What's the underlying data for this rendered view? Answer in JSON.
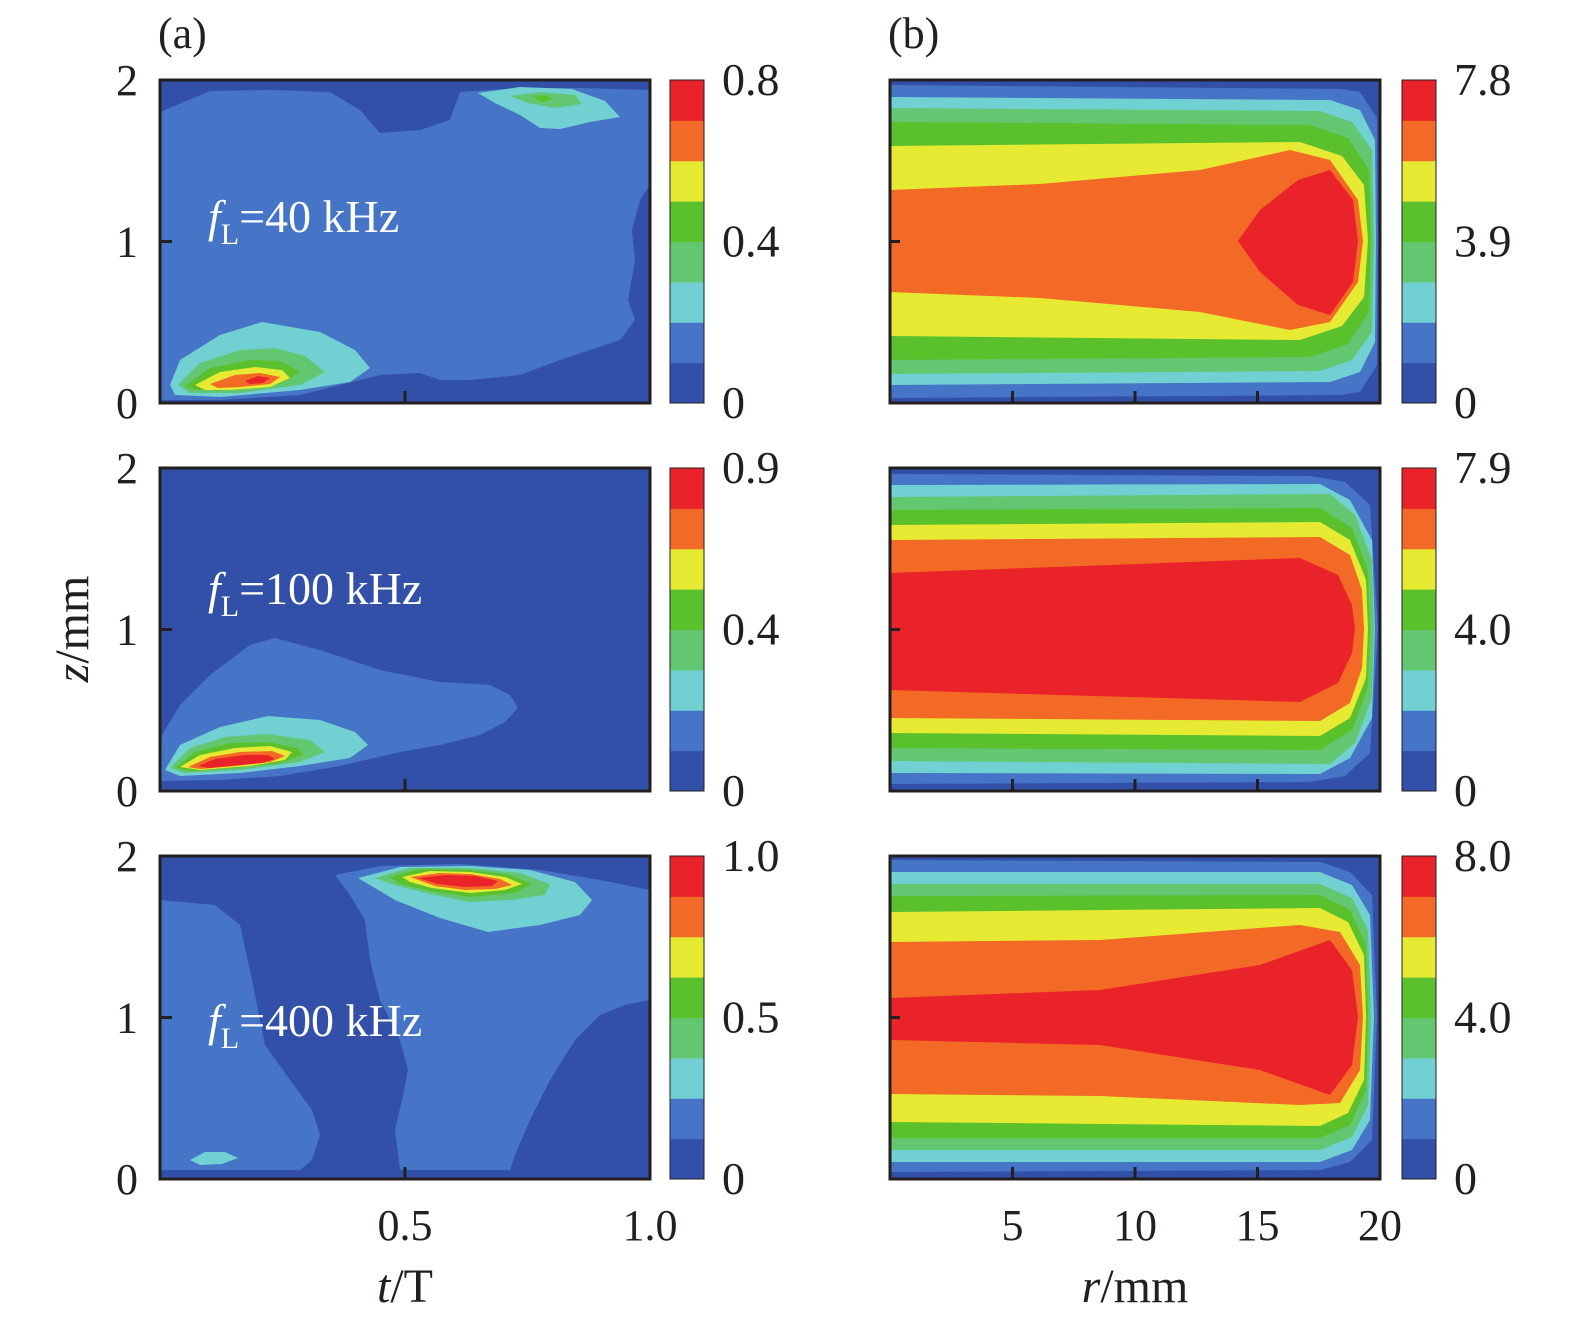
{
  "palette": [
    "#3350a8",
    "#4674c6",
    "#70d0d2",
    "#63c772",
    "#5ac12d",
    "#e6ea32",
    "#f26a25",
    "#ea2229"
  ],
  "panel_labels": [
    "(a)",
    "(b)"
  ],
  "x_titles": [
    {
      "italic": "t",
      "rest": "/T"
    },
    {
      "italic": "r",
      "rest": "/mm"
    }
  ],
  "y_title": {
    "italic": "z",
    "rest": "/mm"
  },
  "chart_data": [
    {
      "type": "heatmap",
      "panel": "(a)",
      "row": 1,
      "annotation": {
        "f": "f",
        "sub": "L",
        "text": "=40 kHz"
      },
      "x_ticks": [
        "0.5",
        "1.0"
      ],
      "y_ticks": [
        "0",
        "1",
        "2"
      ],
      "xlim": [
        0,
        1
      ],
      "ylim": [
        0,
        2
      ],
      "colorbar": {
        "levels": 8,
        "labels": [
          "0",
          "0.4",
          "0.8"
        ],
        "range": [
          0,
          0.8
        ]
      },
      "features": "background low level; hot spot (peak 0.8) near t/T≈0.2, z≈0.13 mm; weak secondary maximum near t/T≈0.78, z≈1.87 mm"
    },
    {
      "type": "heatmap",
      "panel": "(a)",
      "row": 2,
      "annotation": {
        "f": "f",
        "sub": "L",
        "text": "=100 kHz"
      },
      "x_ticks": [
        "0.5",
        "1.0"
      ],
      "y_ticks": [
        "0",
        "1",
        "2"
      ],
      "xlim": [
        0,
        1
      ],
      "ylim": [
        0,
        2
      ],
      "colorbar": {
        "levels": 8,
        "labels": [
          "0",
          "0.4",
          "0.9"
        ],
        "range": [
          0,
          0.9
        ]
      },
      "features": "hot spot (peak 0.9) near t/T≈0.16, z≈0.18 mm; remainder at lowest level"
    },
    {
      "type": "heatmap",
      "panel": "(a)",
      "row": 3,
      "annotation": {
        "f": "f",
        "sub": "L",
        "text": "=400 kHz"
      },
      "x_ticks": [
        "0.5",
        "1.0"
      ],
      "y_ticks": [
        "0",
        "1",
        "2"
      ],
      "xlim": [
        0,
        1
      ],
      "ylim": [
        0,
        2
      ],
      "colorbar": {
        "levels": 8,
        "labels": [
          "0",
          "0.5",
          "1.0"
        ],
        "range": [
          0,
          1.0
        ]
      },
      "features": "hot spot (peak 1.0) near t/T≈0.62, z≈1.83 mm; two slanted bands of second level"
    },
    {
      "type": "heatmap",
      "panel": "(b)",
      "row": 1,
      "x_ticks": [
        "5",
        "10",
        "15",
        "20"
      ],
      "y_ticks": [],
      "xlim": [
        0,
        20
      ],
      "ylim": [
        0,
        2
      ],
      "colorbar": {
        "levels": 8,
        "labels": [
          "0",
          "3.9",
          "7.8"
        ],
        "range": [
          0,
          7.8
        ]
      },
      "features": "horizontal bands symmetric about z=1 mm; maximum 7.8 near r≈17 mm, z≈1 mm"
    },
    {
      "type": "heatmap",
      "panel": "(b)",
      "row": 2,
      "x_ticks": [
        "5",
        "10",
        "15",
        "20"
      ],
      "y_ticks": [],
      "xlim": [
        0,
        20
      ],
      "ylim": [
        0,
        2
      ],
      "colorbar": {
        "levels": 8,
        "labels": [
          "0",
          "4.0",
          "7.9"
        ],
        "range": [
          0,
          7.9
        ]
      },
      "features": "broad central maximum (7.9) for z≈0.6–1.4 mm across r≈0–19 mm"
    },
    {
      "type": "heatmap",
      "panel": "(b)",
      "row": 3,
      "x_ticks": [
        "5",
        "10",
        "15",
        "20"
      ],
      "y_ticks": [],
      "xlim": [
        0,
        20
      ],
      "ylim": [
        0,
        2
      ],
      "colorbar": {
        "levels": 8,
        "labels": [
          "0",
          "4.0",
          "8.0"
        ],
        "range": [
          0,
          8.0
        ]
      },
      "features": "central maximum (8.0) around z=1 mm widening toward r≈18 mm"
    }
  ]
}
